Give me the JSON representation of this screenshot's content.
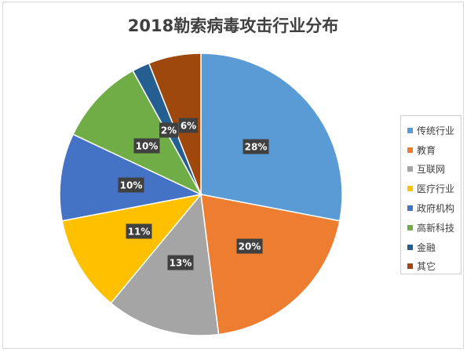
{
  "chart_data": {
    "type": "pie",
    "title": "2018勒索病毒攻击行业分布",
    "categories": [
      "传统行业",
      "教育",
      "互联网",
      "医疗行业",
      "政府机构",
      "高新科技",
      "金融",
      "其它"
    ],
    "values": [
      28,
      20,
      13,
      11,
      10,
      10,
      2,
      6
    ],
    "value_labels": [
      "28%",
      "20%",
      "13%",
      "11%",
      "10%",
      "10%",
      "2%",
      "6%"
    ],
    "colors": [
      "#5b9bd5",
      "#ed7d31",
      "#a5a5a5",
      "#ffc000",
      "#4472c4",
      "#70ad47",
      "#255e91",
      "#9e480e"
    ],
    "start_angle": "12 o'clock",
    "direction": "clockwise",
    "legend_position": "right"
  }
}
